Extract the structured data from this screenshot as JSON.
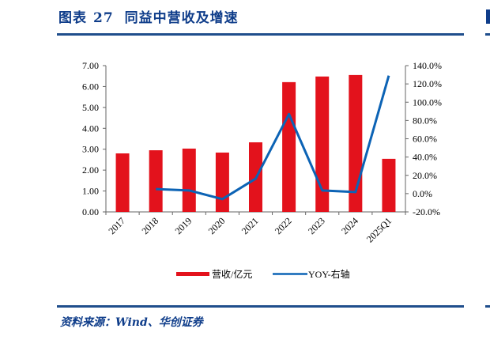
{
  "figure": {
    "label": "图表",
    "number": "27",
    "title": "同益中营收及增速",
    "source": "资料来源：Wind、华创证券"
  },
  "colors": {
    "brand_blue": "#0f3d8a",
    "rule_blue": "#1f4e8c",
    "bar_red": "#e3121c",
    "line_blue": "#0c63b5",
    "axis": "#666666"
  },
  "chart_data": {
    "type": "bar+line",
    "title": "同益中营收及增速",
    "categories": [
      "2017",
      "2018",
      "2019",
      "2020",
      "2021",
      "2022",
      "2023",
      "2024",
      "2025Q1"
    ],
    "series": [
      {
        "name": "营收/亿元",
        "type": "bar",
        "axis": "left",
        "values": [
          2.8,
          2.95,
          3.03,
          2.84,
          3.33,
          6.21,
          6.48,
          6.55,
          2.54
        ]
      },
      {
        "name": "YOY-右轴",
        "type": "line",
        "axis": "right",
        "unit": "%",
        "values": [
          null,
          5.0,
          3.5,
          -6.0,
          16.4,
          87.0,
          3.5,
          1.7,
          129.0
        ]
      }
    ],
    "left_axis": {
      "ylim": [
        0,
        7
      ],
      "ticks": [
        "0.00",
        "1.00",
        "2.00",
        "3.00",
        "4.00",
        "5.00",
        "6.00",
        "7.00"
      ]
    },
    "right_axis": {
      "ylim": [
        -20,
        140
      ],
      "ticks": [
        "-20.0%",
        "0.0%",
        "20.0%",
        "40.0%",
        "60.0%",
        "80.0%",
        "100.0%",
        "120.0%",
        "140.0%"
      ]
    },
    "xlabel": "",
    "ylabel": "",
    "grid": false,
    "legend_position": "bottom",
    "xtick_rotation": -45
  },
  "legend": [
    {
      "label": "营收/亿元",
      "kind": "bar"
    },
    {
      "label": "YOY-右轴",
      "kind": "line"
    }
  ]
}
